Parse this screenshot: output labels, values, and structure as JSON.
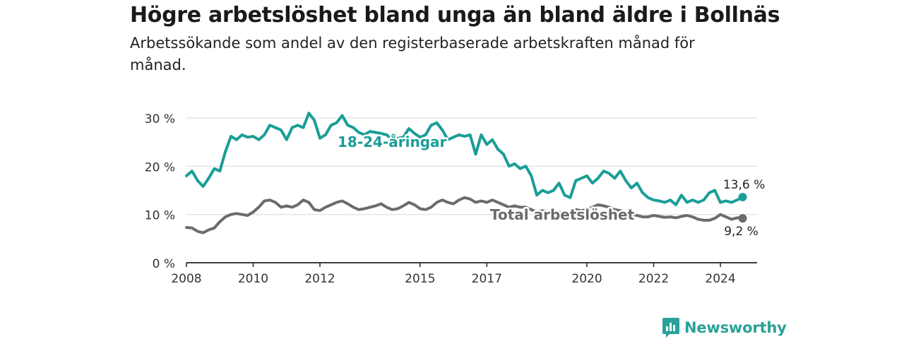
{
  "title": "Högre arbetslöshet bland unga än bland äldre i Bollnäs",
  "subtitle": "Arbetssökande som andel av den registerbaserade arbetskraften månad för månad.",
  "logo_text": "Newsworthy",
  "colors": {
    "youth": "#1a9e96",
    "total": "#6b6b6e",
    "grid": "#dddddd",
    "axis": "#222222",
    "brand": "#2aa198"
  },
  "chart_data": {
    "type": "line",
    "title": "Högre arbetslöshet bland unga än bland äldre i Bollnäs",
    "subtitle": "Arbetssökande som andel av den registerbaserade arbetskraften månad för månad.",
    "xlabel": "",
    "ylabel": "",
    "x_range": [
      "2008-01",
      "2025-01"
    ],
    "ylim": [
      0,
      30
    ],
    "yticks": [
      0,
      10,
      20,
      30
    ],
    "ytick_labels": [
      "0 %",
      "10 %",
      "20 %",
      "30 %"
    ],
    "xticks": [
      "2008",
      "2010",
      "2012",
      "2015",
      "2017",
      "2020",
      "2022",
      "2024"
    ],
    "grid": true,
    "series": [
      {
        "name": "18-24-åringar",
        "end_label": "13,6 %",
        "points": [
          [
            "2008-01",
            18.0
          ],
          [
            "2008-03",
            19.0
          ],
          [
            "2008-05",
            17.0
          ],
          [
            "2008-07",
            15.8
          ],
          [
            "2008-09",
            17.5
          ],
          [
            "2008-11",
            19.5
          ],
          [
            "2009-01",
            19.0
          ],
          [
            "2009-03",
            23.0
          ],
          [
            "2009-05",
            26.2
          ],
          [
            "2009-07",
            25.5
          ],
          [
            "2009-09",
            26.5
          ],
          [
            "2009-11",
            26.0
          ],
          [
            "2010-01",
            26.2
          ],
          [
            "2010-03",
            25.5
          ],
          [
            "2010-05",
            26.5
          ],
          [
            "2010-07",
            28.5
          ],
          [
            "2010-09",
            28.0
          ],
          [
            "2010-11",
            27.5
          ],
          [
            "2011-01",
            25.5
          ],
          [
            "2011-03",
            28.0
          ],
          [
            "2011-05",
            28.5
          ],
          [
            "2011-07",
            28.0
          ],
          [
            "2011-09",
            31.0
          ],
          [
            "2011-11",
            29.5
          ],
          [
            "2012-01",
            25.8
          ],
          [
            "2012-03",
            26.5
          ],
          [
            "2012-05",
            28.5
          ],
          [
            "2012-07",
            29.0
          ],
          [
            "2012-09",
            30.5
          ],
          [
            "2012-11",
            28.5
          ],
          [
            "2013-01",
            28.0
          ],
          [
            "2013-03",
            27.0
          ],
          [
            "2013-05",
            26.5
          ],
          [
            "2013-07",
            27.2
          ],
          [
            "2013-09",
            27.0
          ],
          [
            "2013-11",
            26.8
          ],
          [
            "2014-01",
            26.5
          ],
          [
            "2014-03",
            25.5
          ],
          [
            "2014-05",
            25.8
          ],
          [
            "2014-07",
            26.0
          ],
          [
            "2014-09",
            27.8
          ],
          [
            "2014-11",
            26.8
          ],
          [
            "2015-01",
            26.0
          ],
          [
            "2015-03",
            26.5
          ],
          [
            "2015-05",
            28.5
          ],
          [
            "2015-07",
            29.0
          ],
          [
            "2015-09",
            27.5
          ],
          [
            "2015-11",
            25.5
          ],
          [
            "2016-01",
            26.0
          ],
          [
            "2016-03",
            26.5
          ],
          [
            "2016-05",
            26.2
          ],
          [
            "2016-07",
            26.5
          ],
          [
            "2016-09",
            22.5
          ],
          [
            "2016-11",
            26.5
          ],
          [
            "2017-01",
            24.5
          ],
          [
            "2017-03",
            25.5
          ],
          [
            "2017-05",
            23.5
          ],
          [
            "2017-07",
            22.5
          ],
          [
            "2017-09",
            20.0
          ],
          [
            "2017-11",
            20.5
          ],
          [
            "2018-01",
            19.5
          ],
          [
            "2018-03",
            20.0
          ],
          [
            "2018-05",
            18.0
          ],
          [
            "2018-07",
            14.0
          ],
          [
            "2018-09",
            15.0
          ],
          [
            "2018-11",
            14.5
          ],
          [
            "2019-01",
            15.0
          ],
          [
            "2019-03",
            16.5
          ],
          [
            "2019-05",
            14.0
          ],
          [
            "2019-07",
            13.5
          ],
          [
            "2019-09",
            17.0
          ],
          [
            "2019-11",
            17.5
          ],
          [
            "2020-01",
            18.0
          ],
          [
            "2020-03",
            16.5
          ],
          [
            "2020-05",
            17.5
          ],
          [
            "2020-07",
            19.0
          ],
          [
            "2020-09",
            18.5
          ],
          [
            "2020-11",
            17.5
          ],
          [
            "2021-01",
            19.0
          ],
          [
            "2021-03",
            17.0
          ],
          [
            "2021-05",
            15.5
          ],
          [
            "2021-07",
            16.5
          ],
          [
            "2021-09",
            14.5
          ],
          [
            "2021-11",
            13.5
          ],
          [
            "2022-01",
            13.0
          ],
          [
            "2022-03",
            12.8
          ],
          [
            "2022-05",
            12.5
          ],
          [
            "2022-07",
            13.0
          ],
          [
            "2022-09",
            12.0
          ],
          [
            "2022-11",
            14.0
          ],
          [
            "2023-01",
            12.5
          ],
          [
            "2023-03",
            13.0
          ],
          [
            "2023-05",
            12.5
          ],
          [
            "2023-07",
            13.0
          ],
          [
            "2023-09",
            14.5
          ],
          [
            "2023-11",
            15.0
          ],
          [
            "2024-01",
            12.5
          ],
          [
            "2024-03",
            12.8
          ],
          [
            "2024-05",
            12.5
          ],
          [
            "2024-07",
            13.0
          ],
          [
            "2024-09",
            13.6
          ]
        ]
      },
      {
        "name": "Total arbetslöshet",
        "end_label": "9,2 %",
        "points": [
          [
            "2008-01",
            7.3
          ],
          [
            "2008-03",
            7.2
          ],
          [
            "2008-05",
            6.5
          ],
          [
            "2008-07",
            6.2
          ],
          [
            "2008-09",
            6.8
          ],
          [
            "2008-11",
            7.2
          ],
          [
            "2009-01",
            8.5
          ],
          [
            "2009-03",
            9.5
          ],
          [
            "2009-05",
            10.0
          ],
          [
            "2009-07",
            10.2
          ],
          [
            "2009-09",
            10.0
          ],
          [
            "2009-11",
            9.8
          ],
          [
            "2010-01",
            10.5
          ],
          [
            "2010-03",
            11.5
          ],
          [
            "2010-05",
            12.8
          ],
          [
            "2010-07",
            13.0
          ],
          [
            "2010-09",
            12.5
          ],
          [
            "2010-11",
            11.5
          ],
          [
            "2011-01",
            11.8
          ],
          [
            "2011-03",
            11.5
          ],
          [
            "2011-05",
            12.0
          ],
          [
            "2011-07",
            13.0
          ],
          [
            "2011-09",
            12.5
          ],
          [
            "2011-11",
            11.0
          ],
          [
            "2012-01",
            10.8
          ],
          [
            "2012-03",
            11.5
          ],
          [
            "2012-05",
            12.0
          ],
          [
            "2012-07",
            12.5
          ],
          [
            "2012-09",
            12.8
          ],
          [
            "2012-11",
            12.2
          ],
          [
            "2013-01",
            11.5
          ],
          [
            "2013-03",
            11.0
          ],
          [
            "2013-05",
            11.2
          ],
          [
            "2013-07",
            11.5
          ],
          [
            "2013-09",
            11.8
          ],
          [
            "2013-11",
            12.2
          ],
          [
            "2014-01",
            11.5
          ],
          [
            "2014-03",
            11.0
          ],
          [
            "2014-05",
            11.2
          ],
          [
            "2014-07",
            11.8
          ],
          [
            "2014-09",
            12.5
          ],
          [
            "2014-11",
            12.0
          ],
          [
            "2015-01",
            11.2
          ],
          [
            "2015-03",
            11.0
          ],
          [
            "2015-05",
            11.5
          ],
          [
            "2015-07",
            12.5
          ],
          [
            "2015-09",
            13.0
          ],
          [
            "2015-11",
            12.5
          ],
          [
            "2016-01",
            12.2
          ],
          [
            "2016-03",
            13.0
          ],
          [
            "2016-05",
            13.5
          ],
          [
            "2016-07",
            13.2
          ],
          [
            "2016-09",
            12.5
          ],
          [
            "2016-11",
            12.8
          ],
          [
            "2017-01",
            12.5
          ],
          [
            "2017-03",
            13.0
          ],
          [
            "2017-05",
            12.5
          ],
          [
            "2017-07",
            12.0
          ],
          [
            "2017-09",
            11.5
          ],
          [
            "2017-11",
            11.8
          ],
          [
            "2018-01",
            11.5
          ],
          [
            "2018-03",
            11.5
          ],
          [
            "2018-05",
            11.0
          ],
          [
            "2018-07",
            10.5
          ],
          [
            "2018-09",
            10.8
          ],
          [
            "2018-11",
            10.5
          ],
          [
            "2019-01",
            10.2
          ],
          [
            "2019-03",
            10.5
          ],
          [
            "2019-05",
            10.0
          ],
          [
            "2019-07",
            10.5
          ],
          [
            "2019-09",
            11.0
          ],
          [
            "2019-11",
            10.8
          ],
          [
            "2020-01",
            11.0
          ],
          [
            "2020-03",
            11.5
          ],
          [
            "2020-05",
            12.0
          ],
          [
            "2020-07",
            11.8
          ],
          [
            "2020-09",
            11.5
          ],
          [
            "2020-11",
            11.0
          ],
          [
            "2021-01",
            10.8
          ],
          [
            "2021-03",
            10.5
          ],
          [
            "2021-05",
            10.0
          ],
          [
            "2021-07",
            9.8
          ],
          [
            "2021-09",
            9.5
          ],
          [
            "2021-11",
            9.5
          ],
          [
            "2022-01",
            9.8
          ],
          [
            "2022-03",
            9.6
          ],
          [
            "2022-05",
            9.4
          ],
          [
            "2022-07",
            9.5
          ],
          [
            "2022-09",
            9.3
          ],
          [
            "2022-11",
            9.6
          ],
          [
            "2023-01",
            9.8
          ],
          [
            "2023-03",
            9.5
          ],
          [
            "2023-05",
            9.0
          ],
          [
            "2023-07",
            8.8
          ],
          [
            "2023-09",
            8.8
          ],
          [
            "2023-11",
            9.2
          ],
          [
            "2024-01",
            10.0
          ],
          [
            "2024-03",
            9.5
          ],
          [
            "2024-05",
            9.0
          ],
          [
            "2024-07",
            9.3
          ],
          [
            "2024-09",
            9.2
          ]
        ]
      }
    ]
  }
}
